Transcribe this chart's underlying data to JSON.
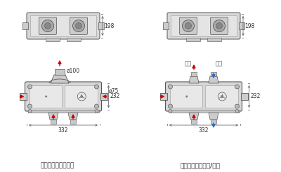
{
  "bg_color": "#ffffff",
  "line_color": "#999999",
  "dark_line": "#555555",
  "body_fill": "#d8d8d8",
  "panel_fill": "#e8e8e8",
  "red": "#cc0000",
  "blue": "#3366cc",
  "text_color": "#333333",
  "title1": "模式一：多点式排风",
  "title2": "模式二：双向流送/排风",
  "dim_198": "198",
  "dim_232": "232",
  "dim_332": "332",
  "dim_100": "ø100",
  "dim_75": "ø75",
  "label_pf": "排风",
  "label_xf": "新风"
}
